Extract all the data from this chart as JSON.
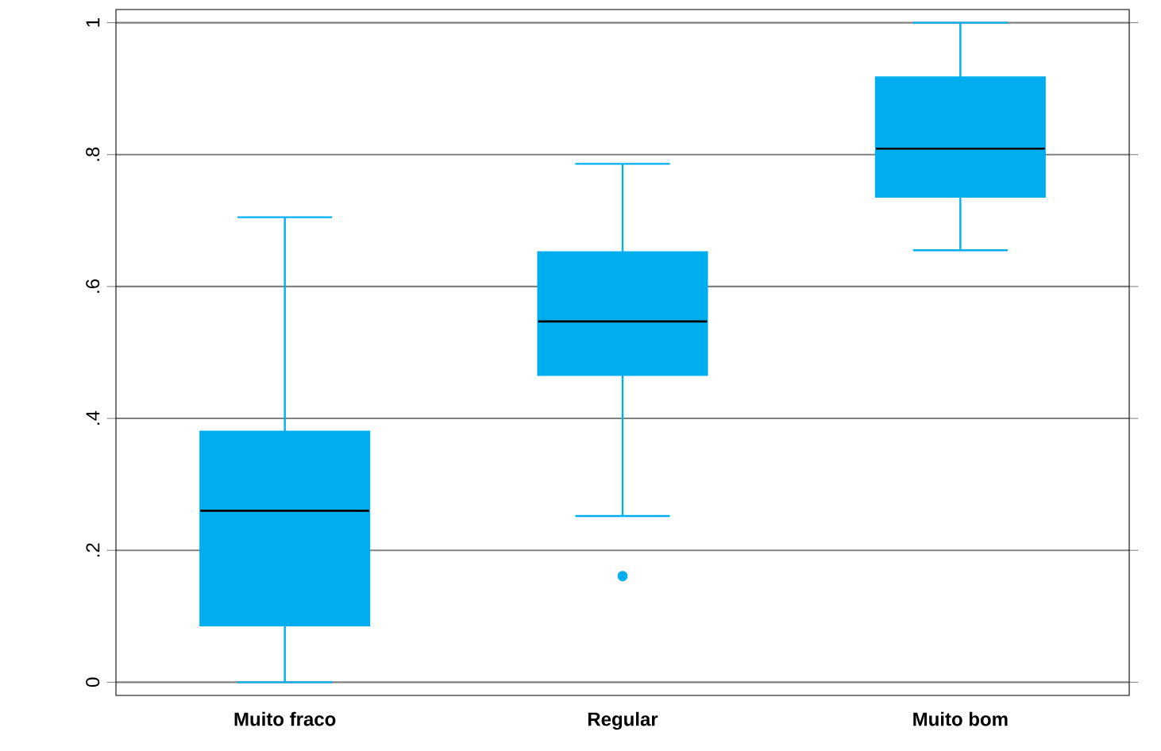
{
  "chart_data": {
    "type": "box",
    "categories": [
      "Muito fraco",
      "Regular",
      "Muito bom"
    ],
    "boxes": [
      {
        "low": 0,
        "q1": 0.086,
        "median": 0.26,
        "q3": 0.38,
        "high": 0.705
      },
      {
        "low": 0.252,
        "q1": 0.466,
        "median": 0.547,
        "q3": 0.652,
        "high": 0.786,
        "outliers": [
          0.161
        ]
      },
      {
        "low": 0.655,
        "q1": 0.736,
        "median": 0.809,
        "q3": 0.917,
        "high": 1
      }
    ],
    "color": "#00aeef",
    "ylim": [
      -0.02,
      1.02
    ],
    "yticks": [
      {
        "value": 0,
        "label": "0"
      },
      {
        "value": 0.2,
        "label": ".2"
      },
      {
        "value": 0.4,
        "label": ".4"
      },
      {
        "value": 0.6,
        "label": ".6"
      },
      {
        "value": 0.8,
        "label": ".8"
      },
      {
        "value": 1,
        "label": "1"
      }
    ],
    "grid": "y"
  }
}
